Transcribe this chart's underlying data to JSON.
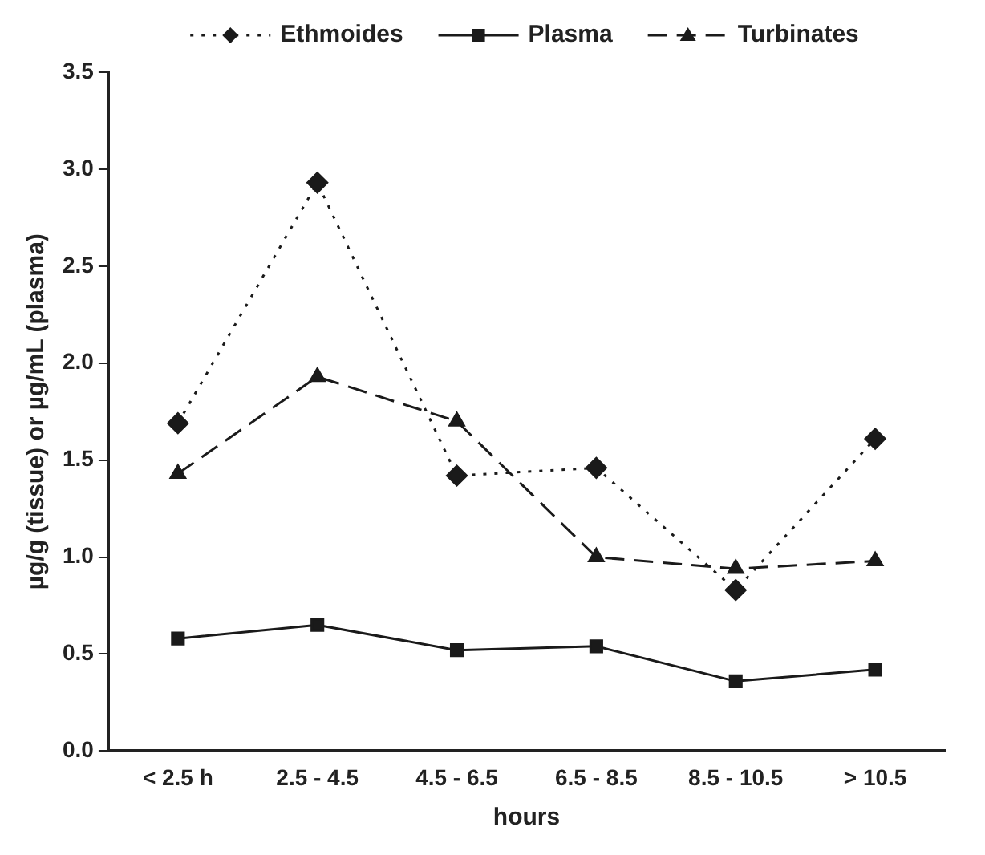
{
  "chart_data": {
    "type": "line",
    "xlabel": "hours",
    "ylabel": "µg/g (tissue) or µg/mL (plasma)",
    "categories": [
      "< 2.5 h",
      "2.5 - 4.5",
      "4.5 - 6.5",
      "6.5 - 8.5",
      "8.5 - 10.5",
      "> 10.5"
    ],
    "series": [
      {
        "name": "Ethmoides",
        "color": "#1a1a1a",
        "values": [
          1.69,
          2.93,
          1.42,
          1.46,
          0.83,
          1.61
        ],
        "marker": "diamond",
        "line_style": "dotted"
      },
      {
        "name": "Plasma",
        "color": "#1a1a1a",
        "values": [
          0.58,
          0.65,
          0.52,
          0.54,
          0.36,
          0.42
        ],
        "marker": "square",
        "line_style": "solid"
      },
      {
        "name": "Turbinates",
        "color": "#1a1a1a",
        "values": [
          1.43,
          1.93,
          1.7,
          1.0,
          0.94,
          0.98
        ],
        "marker": "triangle",
        "line_style": "dashed"
      }
    ],
    "ylim": [
      0,
      3.5
    ],
    "yticks": [
      {
        "value": 0,
        "label": "0.0"
      },
      {
        "value": 0.5,
        "label": "0.5"
      },
      {
        "value": 1,
        "label": "1.0"
      },
      {
        "value": 1.5,
        "label": "1.5"
      },
      {
        "value": 2,
        "label": "2.0"
      },
      {
        "value": 2.5,
        "label": "2.5"
      },
      {
        "value": 3,
        "label": "3.0"
      },
      {
        "value": 3.5,
        "label": "3.5"
      }
    ],
    "grid": false,
    "legend": "top"
  }
}
